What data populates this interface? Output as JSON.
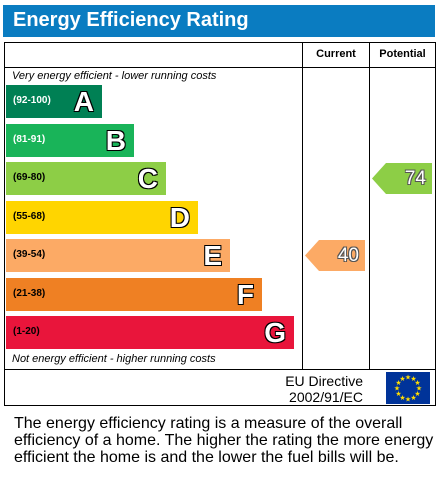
{
  "header": {
    "title": "Energy Efficiency Rating"
  },
  "columns": {
    "current": "Current",
    "potential": "Potential"
  },
  "notes": {
    "top": "Very energy efficient - lower running costs",
    "bottom": "Not energy efficient - higher running costs"
  },
  "chart_data": {
    "type": "bar",
    "categories": [
      "A",
      "B",
      "C",
      "D",
      "E",
      "F",
      "G"
    ],
    "ranges": [
      "(92-100)",
      "(81-91)",
      "(69-80)",
      "(55-68)",
      "(39-54)",
      "(21-38)",
      "(1-20)"
    ],
    "colors": [
      "#008054",
      "#19b459",
      "#8dce46",
      "#ffd500",
      "#fcaa65",
      "#ef8023",
      "#e9153b"
    ],
    "current": {
      "value": "40",
      "band": "E",
      "color": "#fcaa65"
    },
    "potential": {
      "value": "74",
      "band": "C",
      "color": "#8dce46"
    }
  },
  "footer": {
    "directive_line1": "EU Directive",
    "directive_line2": "2002/91/EC"
  },
  "description": "The energy efficiency rating is a measure of the overall efficiency of a home. The higher the rating the more energy efficient the home is and the lower the fuel bills will be."
}
